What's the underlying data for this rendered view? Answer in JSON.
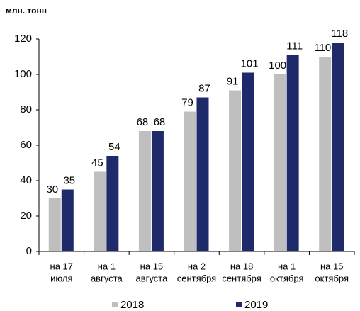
{
  "chart_data": {
    "type": "bar",
    "unit_label": "млн. тонн",
    "categories": [
      [
        "на 17",
        "июля"
      ],
      [
        "на 1",
        "августа"
      ],
      [
        "на 15",
        "августа"
      ],
      [
        "на 2",
        "сентября"
      ],
      [
        "на 18",
        "сентября"
      ],
      [
        "на 1",
        "октября"
      ],
      [
        "на 15",
        "октября"
      ]
    ],
    "series": [
      {
        "name": "2018",
        "color": "#bfbfbf",
        "values": [
          30,
          45,
          68,
          79,
          91,
          100,
          110
        ]
      },
      {
        "name": "2019",
        "color": "#1f2a6b",
        "values": [
          35,
          54,
          68,
          87,
          101,
          111,
          118
        ]
      }
    ],
    "ylim": [
      0,
      120
    ],
    "yticks": [
      0,
      20,
      40,
      60,
      80,
      100,
      120
    ],
    "grid": false
  }
}
